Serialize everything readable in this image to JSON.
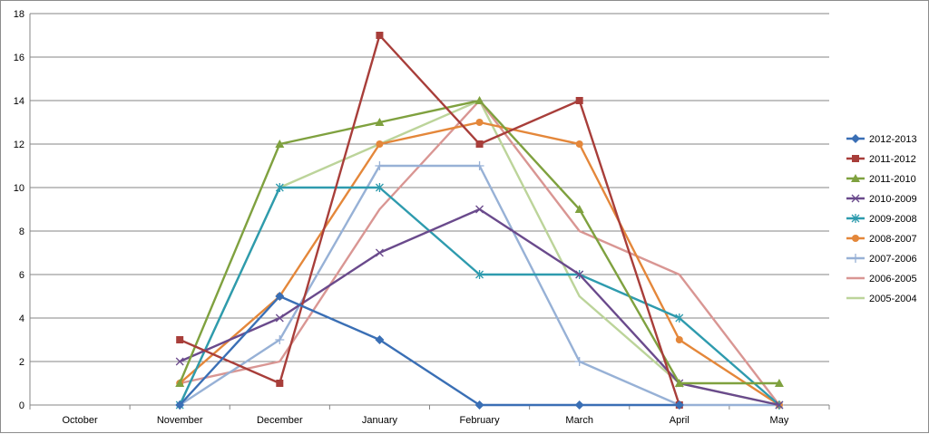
{
  "chart_data": {
    "type": "line",
    "title": "",
    "xlabel": "",
    "ylabel": "",
    "categories": [
      "October",
      "November",
      "December",
      "January",
      "February",
      "March",
      "April",
      "May"
    ],
    "ylim": [
      0,
      18
    ],
    "yticks": [
      0,
      2,
      4,
      6,
      8,
      10,
      12,
      14,
      16,
      18
    ],
    "grid": "horizontal",
    "legend_position": "right",
    "series": [
      {
        "name": "2012-2013",
        "color": "#3A6FB5",
        "marker": "diamond",
        "values": [
          null,
          0,
          5,
          3,
          0,
          0,
          0,
          null
        ]
      },
      {
        "name": "2011-2012",
        "color": "#A83E3A",
        "marker": "square",
        "values": [
          null,
          3,
          1,
          17,
          12,
          14,
          0,
          null
        ]
      },
      {
        "name": "2011-2010",
        "color": "#7FA13F",
        "marker": "triangle",
        "values": [
          null,
          1,
          12,
          13,
          14,
          9,
          1,
          1
        ]
      },
      {
        "name": "2010-2009",
        "color": "#6A4A8C",
        "marker": "x",
        "values": [
          null,
          2,
          4,
          7,
          9,
          6,
          1,
          0
        ]
      },
      {
        "name": "2009-2008",
        "color": "#2E9BAE",
        "marker": "star",
        "values": [
          null,
          0,
          10,
          10,
          6,
          6,
          4,
          0
        ]
      },
      {
        "name": "2008-2007",
        "color": "#E4873A",
        "marker": "circle",
        "values": [
          null,
          1,
          5,
          12,
          13,
          12,
          3,
          0
        ]
      },
      {
        "name": "2007-2006",
        "color": "#97B1D6",
        "marker": "plus",
        "values": [
          null,
          0,
          3,
          11,
          11,
          2,
          0,
          0
        ]
      },
      {
        "name": "2006-2005",
        "color": "#D99693",
        "marker": "none",
        "values": [
          null,
          1,
          2,
          9,
          14,
          8,
          6,
          0
        ]
      },
      {
        "name": "2005-2004",
        "color": "#BCD49A",
        "marker": "none",
        "values": [
          null,
          0,
          10,
          12,
          14,
          5,
          1,
          0
        ]
      }
    ]
  }
}
